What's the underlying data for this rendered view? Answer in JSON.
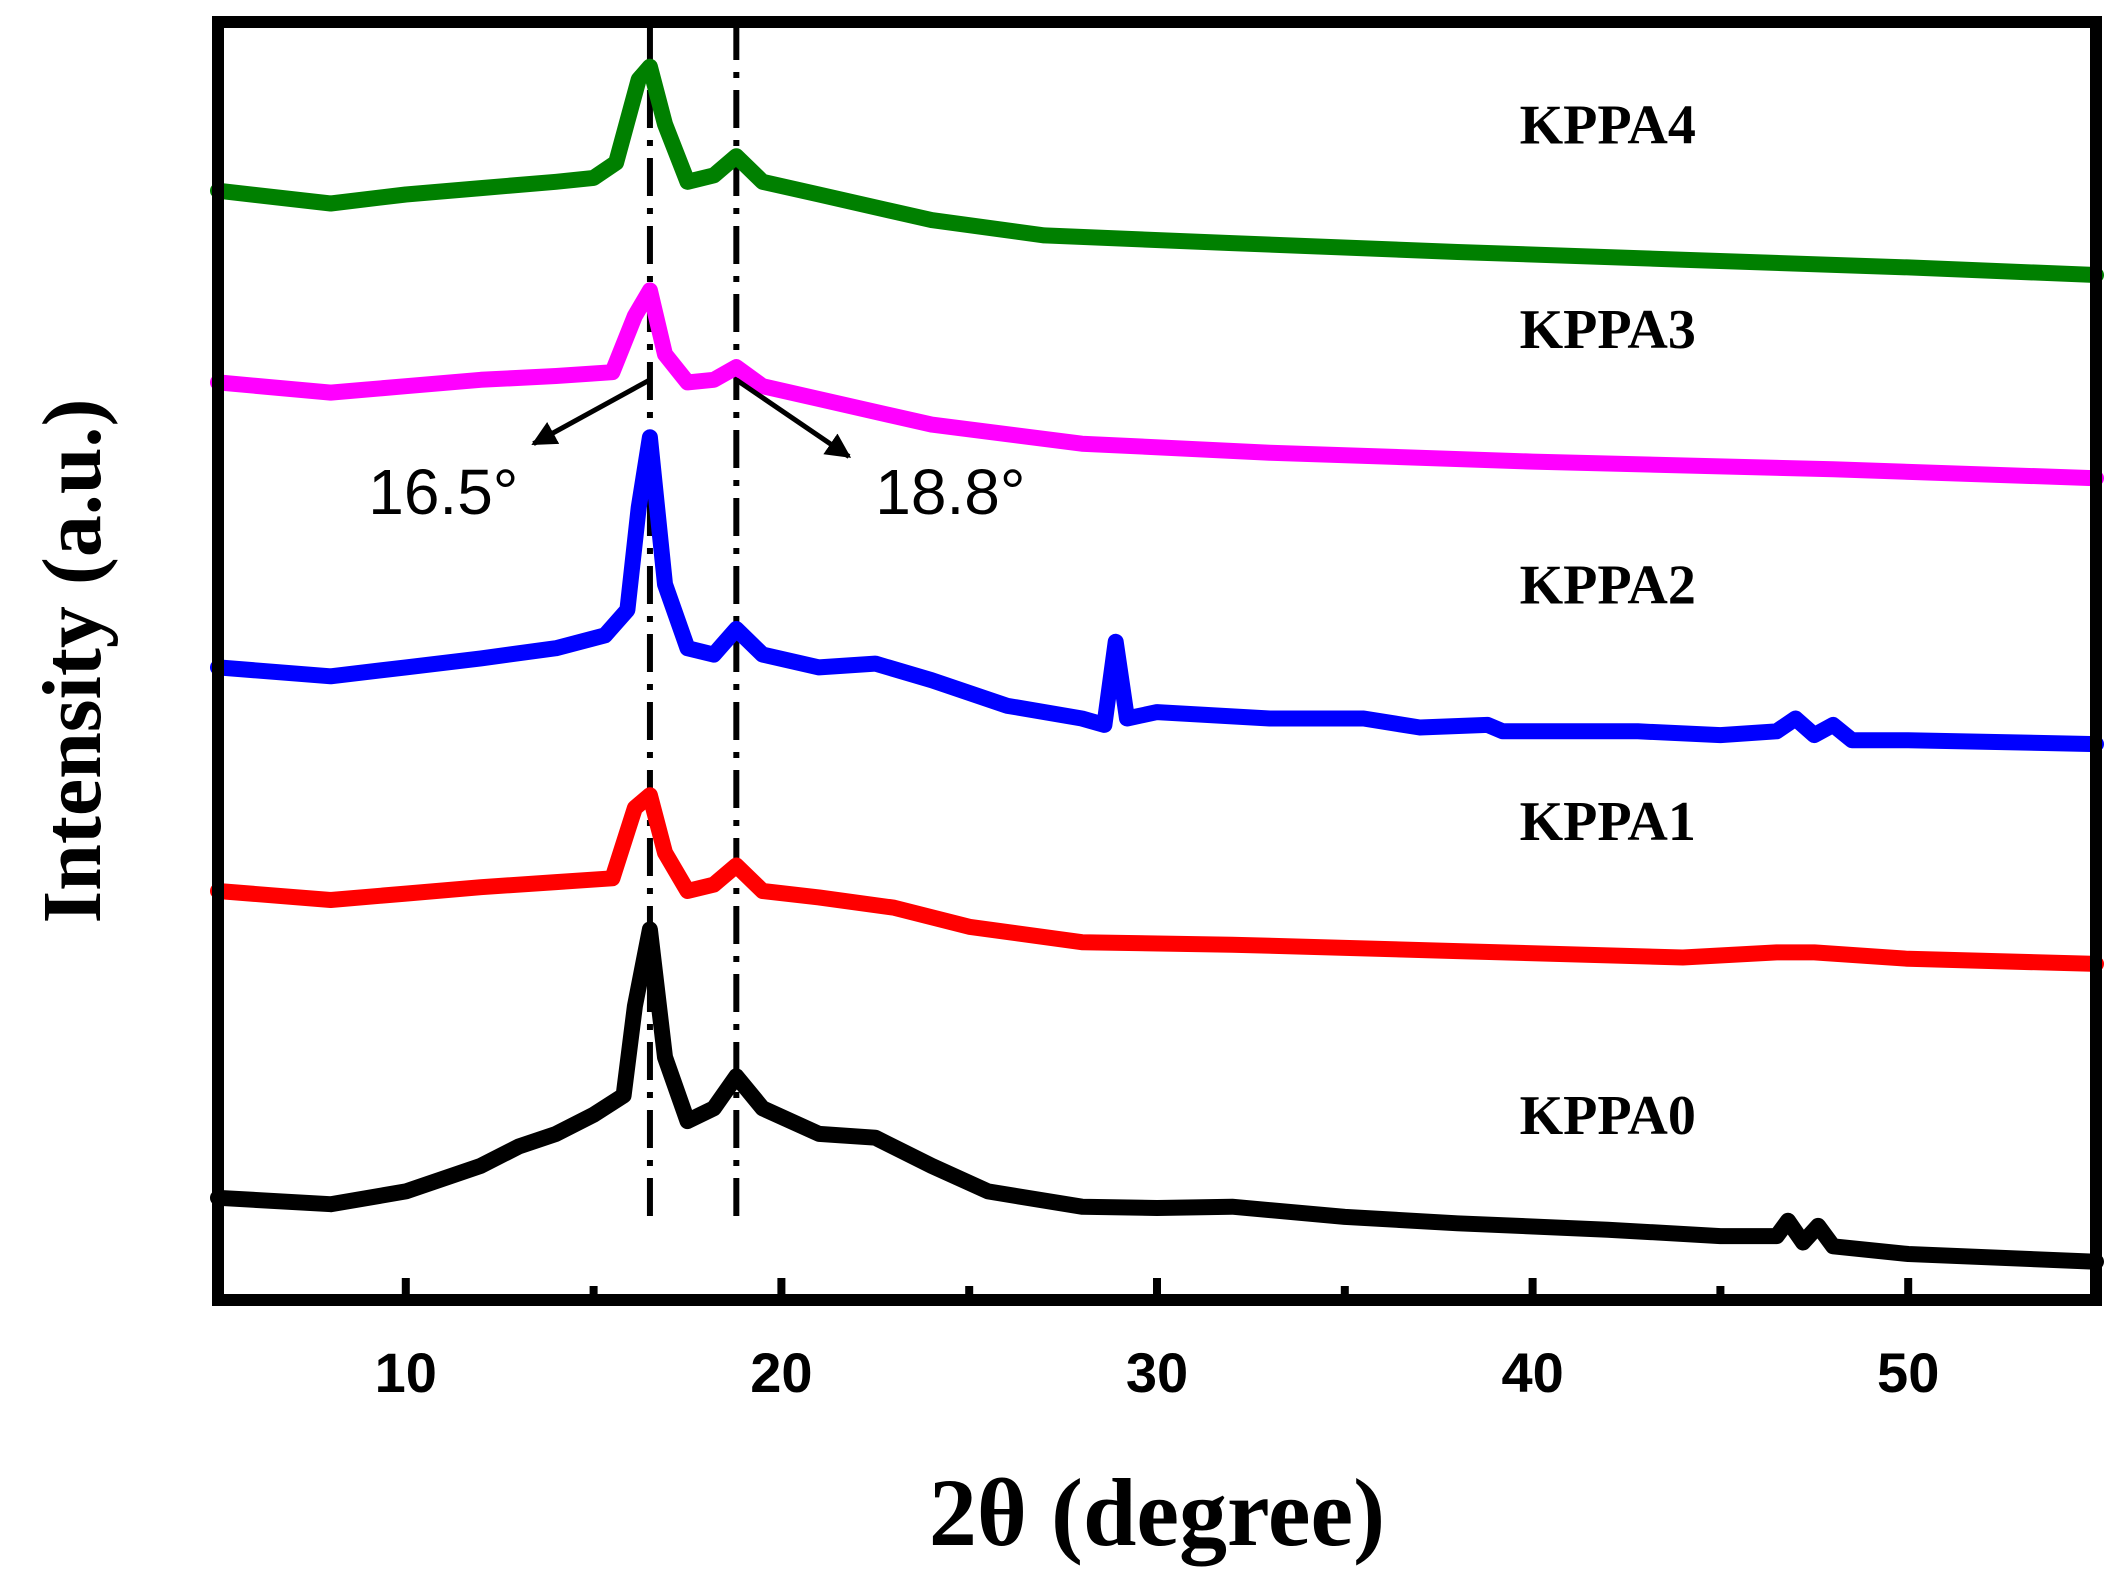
{
  "chart_data": {
    "type": "line",
    "title": "",
    "xlabel": "2θ (degree)",
    "ylabel": "Intensity (a.u.)",
    "xlim": [
      5,
      55
    ],
    "ylim": [
      0,
      10
    ],
    "xticks": [
      10,
      20,
      30,
      40,
      50
    ],
    "grid": false,
    "legend": "inline labels at right",
    "series": [
      {
        "name": "KPPA4",
        "color": "#008000",
        "points": [
          [
            5,
            8.68
          ],
          [
            8,
            8.58
          ],
          [
            10,
            8.65
          ],
          [
            12,
            8.7
          ],
          [
            14,
            8.75
          ],
          [
            15,
            8.78
          ],
          [
            15.6,
            8.9
          ],
          [
            16.2,
            9.55
          ],
          [
            16.5,
            9.65
          ],
          [
            16.9,
            9.2
          ],
          [
            17.5,
            8.75
          ],
          [
            18.2,
            8.8
          ],
          [
            18.8,
            8.95
          ],
          [
            19.5,
            8.75
          ],
          [
            21,
            8.65
          ],
          [
            24,
            8.45
          ],
          [
            27,
            8.33
          ],
          [
            32,
            8.27
          ],
          [
            38,
            8.2
          ],
          [
            44,
            8.14
          ],
          [
            50,
            8.08
          ],
          [
            55,
            8.02
          ]
        ]
      },
      {
        "name": "KPPA3",
        "color": "#ff00ff",
        "points": [
          [
            5,
            7.18
          ],
          [
            8,
            7.1
          ],
          [
            10,
            7.15
          ],
          [
            12,
            7.2
          ],
          [
            14,
            7.23
          ],
          [
            15.5,
            7.26
          ],
          [
            16.1,
            7.7
          ],
          [
            16.5,
            7.9
          ],
          [
            16.9,
            7.4
          ],
          [
            17.5,
            7.18
          ],
          [
            18.2,
            7.2
          ],
          [
            18.8,
            7.3
          ],
          [
            19.5,
            7.15
          ],
          [
            21,
            7.05
          ],
          [
            24,
            6.85
          ],
          [
            28,
            6.7
          ],
          [
            33,
            6.63
          ],
          [
            40,
            6.56
          ],
          [
            48,
            6.5
          ],
          [
            55,
            6.43
          ]
        ]
      },
      {
        "name": "KPPA2",
        "color": "#0000ff",
        "points": [
          [
            5,
            4.95
          ],
          [
            8,
            4.88
          ],
          [
            10,
            4.95
          ],
          [
            12,
            5.02
          ],
          [
            14,
            5.1
          ],
          [
            15.3,
            5.2
          ],
          [
            15.9,
            5.4
          ],
          [
            16.2,
            6.2
          ],
          [
            16.5,
            6.75
          ],
          [
            16.9,
            5.6
          ],
          [
            17.5,
            5.1
          ],
          [
            18.2,
            5.05
          ],
          [
            18.8,
            5.25
          ],
          [
            19.5,
            5.05
          ],
          [
            21,
            4.95
          ],
          [
            22.5,
            4.98
          ],
          [
            24,
            4.85
          ],
          [
            26,
            4.65
          ],
          [
            28,
            4.55
          ],
          [
            28.6,
            4.5
          ],
          [
            28.9,
            5.15
          ],
          [
            29.2,
            4.55
          ],
          [
            30,
            4.6
          ],
          [
            33,
            4.55
          ],
          [
            35.5,
            4.55
          ],
          [
            37,
            4.48
          ],
          [
            38.8,
            4.5
          ],
          [
            39.2,
            4.45
          ],
          [
            42.8,
            4.45
          ],
          [
            45,
            4.42
          ],
          [
            46.5,
            4.45
          ],
          [
            47,
            4.55
          ],
          [
            47.5,
            4.42
          ],
          [
            48,
            4.5
          ],
          [
            48.5,
            4.38
          ],
          [
            50,
            4.38
          ],
          [
            55,
            4.35
          ]
        ]
      },
      {
        "name": "KPPA1",
        "color": "#ff0000",
        "points": [
          [
            5,
            3.2
          ],
          [
            8,
            3.13
          ],
          [
            10,
            3.18
          ],
          [
            12,
            3.23
          ],
          [
            14,
            3.27
          ],
          [
            15.5,
            3.3
          ],
          [
            16.1,
            3.85
          ],
          [
            16.5,
            3.95
          ],
          [
            16.9,
            3.5
          ],
          [
            17.5,
            3.2
          ],
          [
            18.2,
            3.25
          ],
          [
            18.8,
            3.4
          ],
          [
            19.5,
            3.2
          ],
          [
            21,
            3.15
          ],
          [
            23,
            3.07
          ],
          [
            25,
            2.92
          ],
          [
            28,
            2.8
          ],
          [
            32,
            2.78
          ],
          [
            38,
            2.73
          ],
          [
            44,
            2.68
          ],
          [
            46.5,
            2.72
          ],
          [
            47.5,
            2.72
          ],
          [
            50,
            2.67
          ],
          [
            55,
            2.63
          ]
        ]
      },
      {
        "name": "KPPA0",
        "color": "#000000",
        "points": [
          [
            5,
            0.8
          ],
          [
            8,
            0.75
          ],
          [
            10,
            0.85
          ],
          [
            12,
            1.05
          ],
          [
            13,
            1.2
          ],
          [
            14,
            1.3
          ],
          [
            15,
            1.45
          ],
          [
            15.8,
            1.6
          ],
          [
            16.1,
            2.3
          ],
          [
            16.5,
            2.9
          ],
          [
            16.9,
            1.9
          ],
          [
            17.5,
            1.4
          ],
          [
            18.2,
            1.5
          ],
          [
            18.8,
            1.75
          ],
          [
            19.5,
            1.5
          ],
          [
            21,
            1.3
          ],
          [
            22.5,
            1.27
          ],
          [
            24,
            1.05
          ],
          [
            25.5,
            0.85
          ],
          [
            28,
            0.73
          ],
          [
            30,
            0.72
          ],
          [
            32,
            0.73
          ],
          [
            35,
            0.65
          ],
          [
            38,
            0.6
          ],
          [
            42,
            0.55
          ],
          [
            45,
            0.5
          ],
          [
            46.5,
            0.5
          ],
          [
            46.8,
            0.62
          ],
          [
            47.2,
            0.45
          ],
          [
            47.6,
            0.58
          ],
          [
            48,
            0.42
          ],
          [
            50,
            0.36
          ],
          [
            55,
            0.3
          ]
        ]
      }
    ],
    "series_labels": [
      {
        "text": "KPPA4",
        "x": 42,
        "y": 9.05
      },
      {
        "text": "KPPA3",
        "x": 42,
        "y": 7.45
      },
      {
        "text": "KPPA2",
        "x": 42,
        "y": 5.45
      },
      {
        "text": "KPPA1",
        "x": 42,
        "y": 3.6
      },
      {
        "text": "KPPA0",
        "x": 42,
        "y": 1.3
      }
    ],
    "reference_lines": [
      {
        "x": 16.5,
        "style": "dash-dot"
      },
      {
        "x": 18.8,
        "style": "dash-dot"
      }
    ],
    "annotations": [
      {
        "text": "16.5°",
        "x": 9,
        "y": 6.15,
        "arrow_from": [
          16.5,
          7.2
        ],
        "arrow_to": [
          13.4,
          6.7
        ]
      },
      {
        "text": "18.8°",
        "x": 22.5,
        "y": 6.15,
        "arrow_from": [
          18.8,
          7.2
        ],
        "arrow_to": [
          21.8,
          6.6
        ]
      }
    ]
  }
}
